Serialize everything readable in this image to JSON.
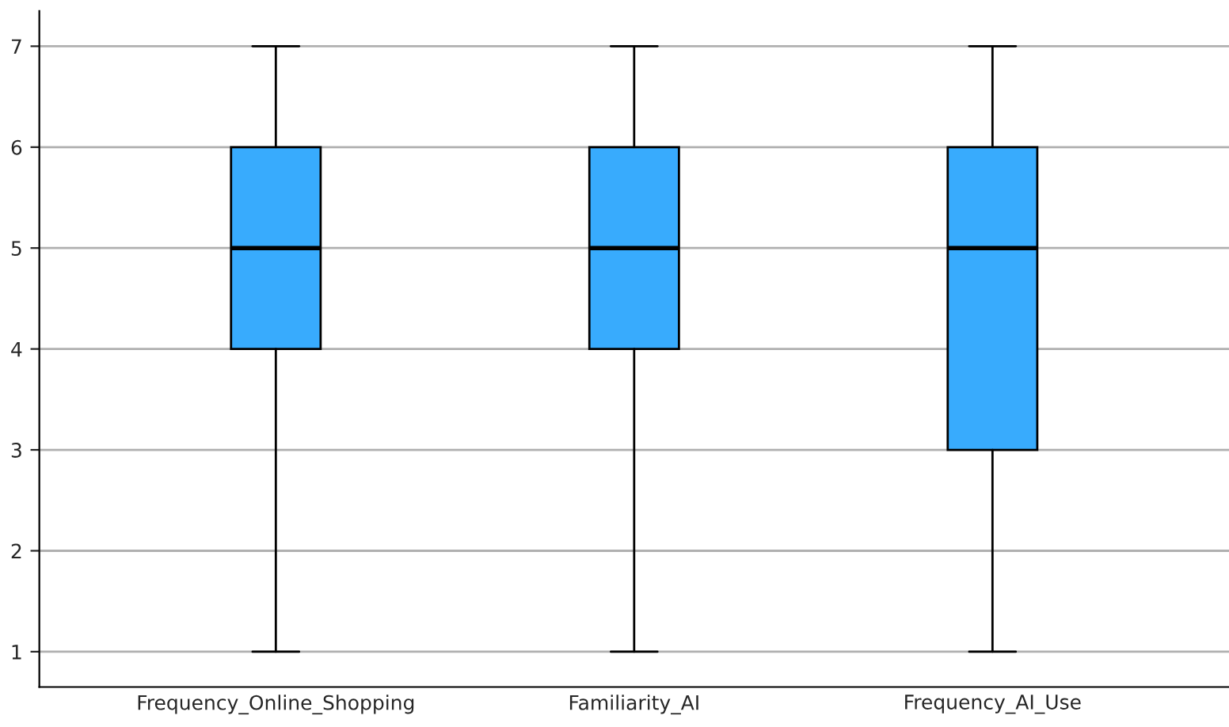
{
  "chart_data": {
    "type": "box",
    "categories": [
      "Frequency_Online_Shopping",
      "Familiarity_AI",
      "Frequency_AI_Use"
    ],
    "boxes": [
      {
        "low": 1,
        "q1": 4,
        "median": 5,
        "q3": 6,
        "high": 7
      },
      {
        "low": 1,
        "q1": 4,
        "median": 5,
        "q3": 6,
        "high": 7
      },
      {
        "low": 1,
        "q1": 3,
        "median": 5,
        "q3": 6,
        "high": 7
      }
    ],
    "color": "#38abfd",
    "ylim": [
      0.65,
      7.35
    ],
    "yticks": [
      1,
      2,
      3,
      4,
      5,
      6,
      7
    ],
    "grid": "y"
  }
}
